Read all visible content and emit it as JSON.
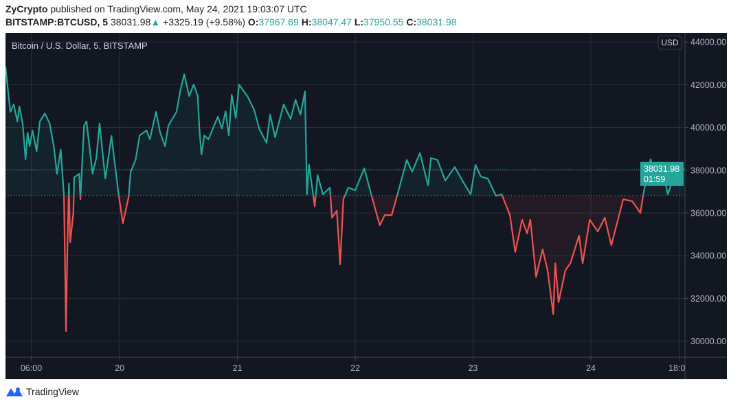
{
  "header": {
    "author": "ZyCrypto",
    "published_text": "published on TradingView.com, May 24, 2021 19:03:07 UTC",
    "symbol": "BITSTAMP:BTCUSD, 5",
    "last_price": "38031.98",
    "change_icon": "triangle-up-icon",
    "change_arrow": "▲",
    "change": "+3325.19 (+9.58%)",
    "open_label": "O:",
    "open": "37967.69",
    "high_label": "H:",
    "high": "38047.47",
    "low_label": "L:",
    "low": "37950.55",
    "close_label": "C:",
    "close": "38031.98"
  },
  "footer": {
    "logo_text": "TradingView"
  },
  "colors": {
    "background": "#131722",
    "grid": "#2a2e39",
    "up": "#26a69a",
    "down": "#ef5350",
    "axis_text": "#b2b5be"
  },
  "chart_data": {
    "type": "area",
    "title": "Bitcoin / U.S. Dollar, 5, BITSTAMP",
    "style": "baseline",
    "currency_badge": "USD",
    "baseline_value": 36810,
    "last_price_label": "38031.98",
    "countdown_label": "01:59",
    "xlim": [
      "2021-05-19 00:45",
      "2021-05-24 19:10"
    ],
    "ylim": [
      29250,
      44420
    ],
    "grid": true,
    "y_ticks": [
      {
        "value": 44000,
        "label": "44000.00"
      },
      {
        "value": 42000,
        "label": "42000.00"
      },
      {
        "value": 40000,
        "label": "40000.00"
      },
      {
        "value": 38000,
        "label": "38000.00"
      },
      {
        "value": 36000,
        "label": "36000.00"
      },
      {
        "value": 34000,
        "label": "34000.00"
      },
      {
        "value": 32000,
        "label": "32000.00"
      },
      {
        "value": 30000,
        "label": "30000.00"
      }
    ],
    "x_ticks": [
      {
        "time": "2021-05-19 06:00",
        "label": "06:00"
      },
      {
        "time": "2021-05-20 00:00",
        "label": "20"
      },
      {
        "time": "2021-05-21 00:00",
        "label": "21"
      },
      {
        "time": "2021-05-22 00:00",
        "label": "22"
      },
      {
        "time": "2021-05-23 00:00",
        "label": "23"
      },
      {
        "time": "2021-05-24 00:00",
        "label": "24"
      },
      {
        "time": "2021-05-24 18:00",
        "label": "18:00"
      }
    ],
    "series": [
      {
        "points": [
          [
            "2021-05-19 00:45",
            42850
          ],
          [
            "2021-05-19 01:20",
            41560
          ],
          [
            "2021-05-19 01:45",
            40730
          ],
          [
            "2021-05-19 02:25",
            41080
          ],
          [
            "2021-05-19 03:10",
            40280
          ],
          [
            "2021-05-19 03:35",
            40980
          ],
          [
            "2021-05-19 04:15",
            40180
          ],
          [
            "2021-05-19 04:50",
            38510
          ],
          [
            "2021-05-19 05:15",
            39760
          ],
          [
            "2021-05-19 05:40",
            39120
          ],
          [
            "2021-05-19 06:15",
            39860
          ],
          [
            "2021-05-19 07:05",
            38890
          ],
          [
            "2021-05-19 07:45",
            40280
          ],
          [
            "2021-05-19 08:45",
            40660
          ],
          [
            "2021-05-19 09:45",
            40180
          ],
          [
            "2021-05-19 10:35",
            39120
          ],
          [
            "2021-05-19 11:15",
            37830
          ],
          [
            "2021-05-19 12:00",
            38960
          ],
          [
            "2021-05-19 12:40",
            36800
          ],
          [
            "2021-05-19 13:05",
            30470
          ],
          [
            "2021-05-19 13:20",
            33970
          ],
          [
            "2021-05-19 13:40",
            37380
          ],
          [
            "2021-05-19 13:55",
            34620
          ],
          [
            "2021-05-19 14:35",
            36000
          ],
          [
            "2021-05-19 14:45",
            37670
          ],
          [
            "2021-05-19 15:45",
            37830
          ],
          [
            "2021-05-19 16:00",
            36640
          ],
          [
            "2021-05-19 16:45",
            40080
          ],
          [
            "2021-05-19 17:15",
            40280
          ],
          [
            "2021-05-19 18:30",
            37830
          ],
          [
            "2021-05-19 19:15",
            38570
          ],
          [
            "2021-05-19 19:55",
            40180
          ],
          [
            "2021-05-19 21:05",
            37610
          ],
          [
            "2021-05-19 22:20",
            39600
          ],
          [
            "2021-05-19 23:10",
            38030
          ],
          [
            "2021-05-19 23:50",
            36800
          ],
          [
            "2021-05-20 00:40",
            35520
          ],
          [
            "2021-05-20 01:50",
            36740
          ],
          [
            "2021-05-20 02:15",
            37930
          ],
          [
            "2021-05-20 03:15",
            38480
          ],
          [
            "2021-05-20 04:05",
            39630
          ],
          [
            "2021-05-20 05:30",
            39860
          ],
          [
            "2021-05-20 06:10",
            39440
          ],
          [
            "2021-05-20 07:25",
            40730
          ],
          [
            "2021-05-20 08:15",
            39760
          ],
          [
            "2021-05-20 09:15",
            39120
          ],
          [
            "2021-05-20 09:55",
            40080
          ],
          [
            "2021-05-20 11:35",
            40730
          ],
          [
            "2021-05-20 12:20",
            41690
          ],
          [
            "2021-05-20 13:10",
            42490
          ],
          [
            "2021-05-20 14:10",
            41470
          ],
          [
            "2021-05-20 15:05",
            42010
          ],
          [
            "2021-05-20 15:55",
            41470
          ],
          [
            "2021-05-20 16:15",
            39950
          ],
          [
            "2021-05-20 16:40",
            38730
          ],
          [
            "2021-05-20 17:15",
            39630
          ],
          [
            "2021-05-20 18:05",
            39440
          ],
          [
            "2021-05-20 20:00",
            40500
          ],
          [
            "2021-05-20 20:50",
            39950
          ],
          [
            "2021-05-20 21:35",
            40760
          ],
          [
            "2021-05-20 22:15",
            39630
          ],
          [
            "2021-05-20 22:50",
            41530
          ],
          [
            "2021-05-20 23:40",
            40440
          ],
          [
            "2021-05-21 00:20",
            42010
          ],
          [
            "2021-05-21 02:00",
            41470
          ],
          [
            "2021-05-21 03:25",
            40820
          ],
          [
            "2021-05-21 04:25",
            39950
          ],
          [
            "2021-05-21 05:55",
            39280
          ],
          [
            "2021-05-21 06:40",
            40600
          ],
          [
            "2021-05-21 07:40",
            39540
          ],
          [
            "2021-05-21 09:25",
            41080
          ],
          [
            "2021-05-21 10:50",
            40400
          ],
          [
            "2021-05-21 11:50",
            41300
          ],
          [
            "2021-05-21 12:50",
            40600
          ],
          [
            "2021-05-21 13:45",
            41690
          ],
          [
            "2021-05-21 14:10",
            36870
          ],
          [
            "2021-05-21 14:35",
            38250
          ],
          [
            "2021-05-21 15:45",
            36320
          ],
          [
            "2021-05-21 16:20",
            37770
          ],
          [
            "2021-05-21 17:25",
            36870
          ],
          [
            "2021-05-21 18:50",
            37190
          ],
          [
            "2021-05-21 19:15",
            35780
          ],
          [
            "2021-05-21 20:15",
            36100
          ],
          [
            "2021-05-21 20:55",
            33590
          ],
          [
            "2021-05-21 21:35",
            36640
          ],
          [
            "2021-05-21 22:35",
            37190
          ],
          [
            "2021-05-22 00:00",
            37060
          ],
          [
            "2021-05-22 01:50",
            38090
          ],
          [
            "2021-05-22 03:15",
            36870
          ],
          [
            "2021-05-22 05:00",
            35420
          ],
          [
            "2021-05-22 06:00",
            35900
          ],
          [
            "2021-05-22 07:25",
            35900
          ],
          [
            "2021-05-22 08:50",
            37060
          ],
          [
            "2021-05-22 10:30",
            38480
          ],
          [
            "2021-05-22 11:35",
            37930
          ],
          [
            "2021-05-22 13:10",
            38800
          ],
          [
            "2021-05-22 14:50",
            37290
          ],
          [
            "2021-05-22 15:25",
            38570
          ],
          [
            "2021-05-22 16:45",
            38480
          ],
          [
            "2021-05-22 18:20",
            37510
          ],
          [
            "2021-05-22 20:15",
            38150
          ],
          [
            "2021-05-22 21:50",
            37510
          ],
          [
            "2021-05-22 23:30",
            36870
          ],
          [
            "2021-05-23 00:30",
            38250
          ],
          [
            "2021-05-23 01:35",
            37700
          ],
          [
            "2021-05-23 03:00",
            37610
          ],
          [
            "2021-05-23 04:40",
            36800
          ],
          [
            "2021-05-23 05:50",
            36870
          ],
          [
            "2021-05-23 07:30",
            35900
          ],
          [
            "2021-05-23 08:35",
            34170
          ],
          [
            "2021-05-23 10:00",
            35680
          ],
          [
            "2021-05-23 11:00",
            35040
          ],
          [
            "2021-05-23 11:40",
            35680
          ],
          [
            "2021-05-23 12:50",
            33010
          ],
          [
            "2021-05-23 14:10",
            34300
          ],
          [
            "2021-05-23 15:10",
            33330
          ],
          [
            "2021-05-23 16:20",
            31270
          ],
          [
            "2021-05-23 16:45",
            33650
          ],
          [
            "2021-05-23 17:25",
            31820
          ],
          [
            "2021-05-23 18:50",
            33330
          ],
          [
            "2021-05-23 19:50",
            33650
          ],
          [
            "2021-05-23 21:35",
            34940
          ],
          [
            "2021-05-23 22:20",
            33650
          ],
          [
            "2021-05-23 23:45",
            35680
          ],
          [
            "2021-05-24 01:25",
            35130
          ],
          [
            "2021-05-24 02:50",
            35780
          ],
          [
            "2021-05-24 04:10",
            34490
          ],
          [
            "2021-05-24 06:35",
            36640
          ],
          [
            "2021-05-24 08:25",
            36550
          ],
          [
            "2021-05-24 10:05",
            36000
          ],
          [
            "2021-05-24 10:45",
            36970
          ],
          [
            "2021-05-24 12:10",
            38510
          ],
          [
            "2021-05-24 13:00",
            37610
          ],
          [
            "2021-05-24 14:40",
            37990
          ],
          [
            "2021-05-24 15:40",
            36870
          ],
          [
            "2021-05-24 16:45",
            37610
          ],
          [
            "2021-05-24 17:55",
            38250
          ],
          [
            "2021-05-24 19:00",
            38031.98
          ]
        ]
      }
    ]
  }
}
